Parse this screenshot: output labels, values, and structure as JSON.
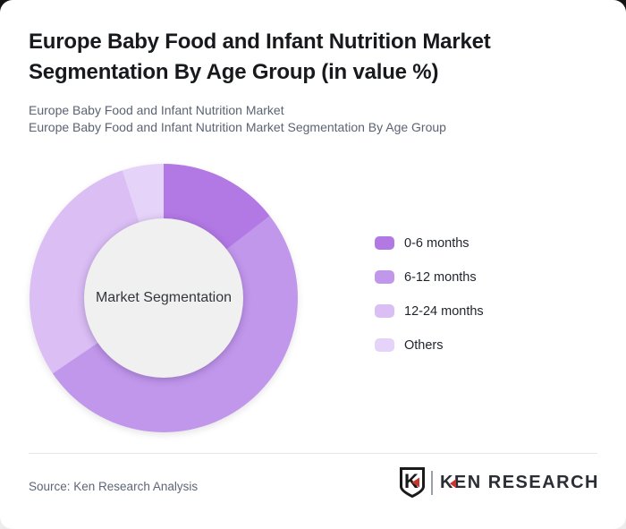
{
  "header": {
    "title": "Europe Baby Food and Infant Nutrition Market Segmentation By Age Group (in value %)",
    "title_line1": "Europe Baby Food and Infant Nutrition Market",
    "title_line2": "Segmentation By Age Group (in value %)",
    "subtitle_line1": "Europe Baby Food and Infant Nutrition Market",
    "subtitle_line2": "Europe Baby Food and Infant Nutrition Market Segmentation By Age Group"
  },
  "chart_data": {
    "type": "pie",
    "variant": "donut",
    "title": "Europe Baby Food and Infant Nutrition Market Segmentation By Age Group (in value %)",
    "center_label": "Market Segmentation",
    "categories": [
      "0-6 months",
      "6-12 months",
      "12-24 months",
      "Others"
    ],
    "values": [
      14.5,
      51,
      29.5,
      5
    ],
    "values_estimated_from_arc_angles": true,
    "colors": [
      "#b278e4",
      "#c197eb",
      "#dabef4",
      "#e5d3f9"
    ],
    "start_angle_deg": 0,
    "direction": "clockwise",
    "legend_position": "right",
    "hole_color": "#f0f0f0"
  },
  "footer": {
    "source": "Source: Ken Research Analysis",
    "logo_shield_letter": "K",
    "logo_text": "KEN RESEARCH"
  },
  "colors": {
    "card_background": "#ffffff",
    "title_text": "#17191c",
    "subtitle_text": "#5b6472",
    "legend_text": "#1f242c",
    "source_text": "#5d6676",
    "logo_red": "#c8352c",
    "divider": "#e6e6e6"
  }
}
